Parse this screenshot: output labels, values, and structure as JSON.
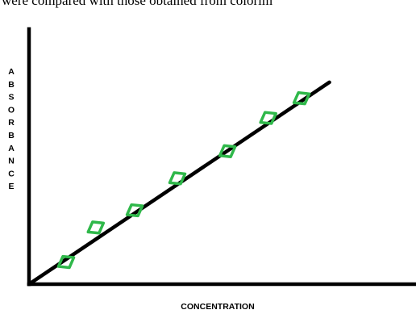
{
  "header_text": "were compared with those obtained from colorim",
  "chart_data": {
    "type": "scatter",
    "title": "",
    "xlabel": "CONCENTRATION",
    "ylabel": "ABSORBANCE",
    "xlim": [
      0,
      10
    ],
    "ylim": [
      0,
      10
    ],
    "grid": false,
    "legend": "none",
    "trend_line": {
      "from": [
        0,
        0
      ],
      "to": [
        8.1,
        8.2
      ]
    },
    "points": [
      {
        "x": 1.0,
        "y": 0.9
      },
      {
        "x": 1.8,
        "y": 2.3
      },
      {
        "x": 2.85,
        "y": 3.0
      },
      {
        "x": 4.0,
        "y": 4.3
      },
      {
        "x": 5.35,
        "y": 5.4
      },
      {
        "x": 6.45,
        "y": 6.75
      },
      {
        "x": 7.35,
        "y": 7.55
      }
    ],
    "colors": {
      "axis": "#000000",
      "line": "#000000",
      "marker": "#2fb84a"
    }
  }
}
